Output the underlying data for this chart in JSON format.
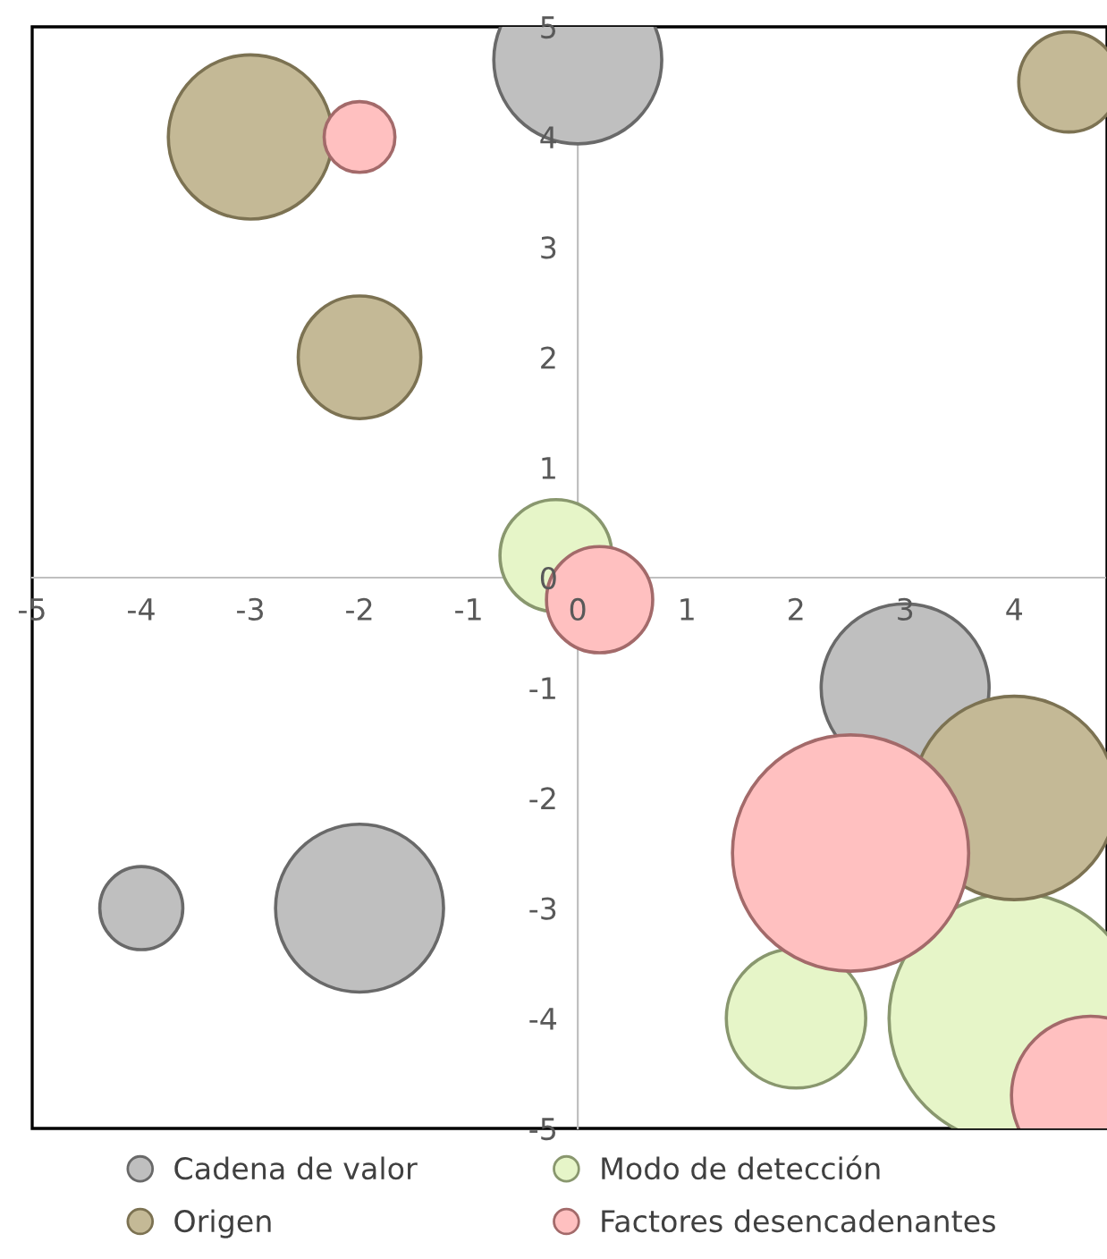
{
  "chart_data": {
    "type": "bubble",
    "xlim": [
      -5,
      4.85
    ],
    "ylim": [
      -5,
      5
    ],
    "xticks": [
      -5,
      -4,
      -3,
      -2,
      -1,
      0,
      1,
      2,
      3,
      4
    ],
    "yticks": [
      -5,
      -4,
      -3,
      -2,
      -1,
      0,
      1,
      2,
      3,
      4,
      5
    ],
    "grid": false,
    "legend": "bottom",
    "marker": "circle",
    "series": [
      {
        "name": "Cadena de valor",
        "color": "#bfbfbf",
        "x": [
          0,
          3,
          -4,
          -2
        ],
        "values": [
          4.7,
          -1,
          -3,
          -3
        ],
        "sizes": [
          0.45,
          0.45,
          0.11,
          0.45
        ]
      },
      {
        "name": "Modo de detección",
        "color": "#e6f5c8",
        "x": [
          -0.2,
          2,
          4
        ],
        "values": [
          0.2,
          -4,
          -4
        ],
        "sizes": [
          0.2,
          0.31,
          1
        ]
      },
      {
        "name": "Origen",
        "color": "#c4b996",
        "x": [
          -3,
          -2,
          4.5,
          4
        ],
        "values": [
          4,
          2,
          4.5,
          -2
        ],
        "sizes": [
          0.43,
          0.24,
          0.16,
          0.66
        ]
      },
      {
        "name": "Factores desencadenantes",
        "color": "#ffc0c0",
        "x": [
          -2,
          0.2,
          2.5,
          4.7
        ],
        "values": [
          4,
          -0.2,
          -2.5,
          -4.7
        ],
        "sizes": [
          0.08,
          0.18,
          0.89,
          0.4
        ]
      }
    ]
  }
}
